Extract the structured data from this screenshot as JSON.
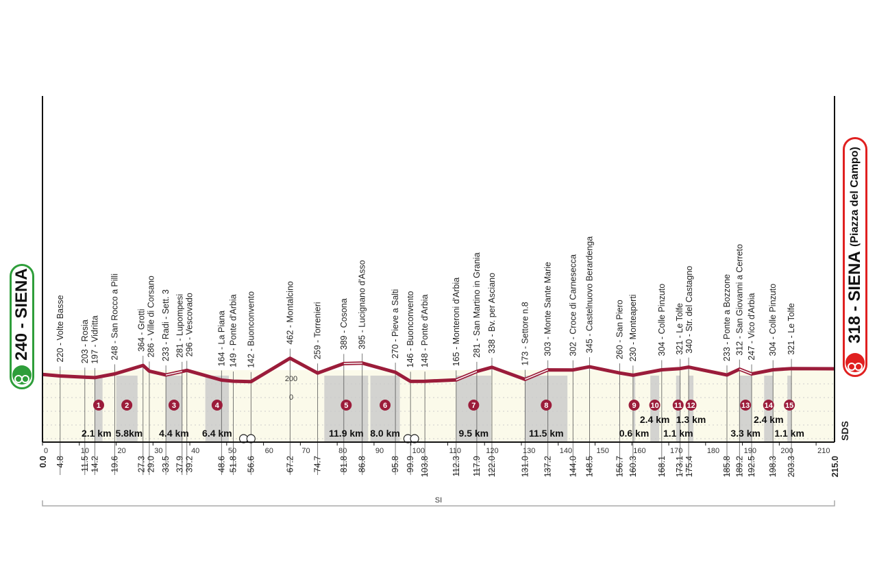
{
  "start": {
    "label": "240 - SIENA",
    "color": "#2e9e3a",
    "icon": "bike-icon"
  },
  "finish": {
    "label": "318 - SIENA",
    "sublabel": "(Piazza del Campo)",
    "color": "#e02020",
    "icon": "bike-icon"
  },
  "sds_label": "SDS",
  "bracket_label": "SI",
  "chart_data": {
    "type": "line",
    "profile_color": "#9b1c3a",
    "total_km": 215,
    "start_km_label": "0.0",
    "finish_km_label": "215.0",
    "x_ticks": [
      0,
      10,
      20,
      30,
      40,
      50,
      60,
      70,
      80,
      90,
      100,
      110,
      120,
      130,
      140,
      150,
      160,
      170,
      180,
      190,
      200,
      210
    ],
    "elev_labels": [
      "200",
      "0"
    ],
    "start_elevation": 240,
    "finish_elevation": 318,
    "waypoints": [
      {
        "km": 4.8,
        "km_label": "4.8",
        "elev": 220,
        "label": "220 - Volte Basse"
      },
      {
        "km": 11.5,
        "km_label": "11.5",
        "elev": 203,
        "label": "203 - Rosia"
      },
      {
        "km": 14.2,
        "km_label": "14.2",
        "elev": 197,
        "label": "197 - Vidritta"
      },
      {
        "km": 19.6,
        "km_label": "19.6",
        "elev": 248,
        "label": "248 - San Rocco a Pilli"
      },
      {
        "km": 27.3,
        "km_label": "27.3",
        "elev": 364,
        "label": "364 - Grotti"
      },
      {
        "km": 29.0,
        "km_label": "29.0",
        "elev": 286,
        "label": "286 - Ville di Corsano"
      },
      {
        "km": 33.5,
        "km_label": "33.5",
        "elev": 233,
        "label": "233 - Radi - Sett. 3"
      },
      {
        "km": 37.9,
        "km_label": "37.9",
        "elev": 281,
        "label": "281 - Lupompesi"
      },
      {
        "km": 39.2,
        "km_label": "39.2",
        "elev": 296,
        "label": "296 - Vescovado"
      },
      {
        "km": 48.6,
        "km_label": "48.6",
        "elev": 164,
        "label": "164 - La Piana"
      },
      {
        "km": 51.8,
        "km_label": "51.8",
        "elev": 149,
        "label": "149 - Ponte d'Arbia"
      },
      {
        "km": 56.6,
        "km_label": "56.6",
        "elev": 142,
        "label": "142 - Buonconvento"
      },
      {
        "km": 67.2,
        "km_label": "67.2",
        "elev": 462,
        "label": "462 - Montalcino"
      },
      {
        "km": 74.7,
        "km_label": "74.7",
        "elev": 259,
        "label": "259 - Torrenieri"
      },
      {
        "km": 81.8,
        "km_label": "81.8",
        "elev": 389,
        "label": "389 - Cosona"
      },
      {
        "km": 86.8,
        "km_label": "86.8",
        "elev": 395,
        "label": "395 - Lucignano d'Asso"
      },
      {
        "km": 95.8,
        "km_label": "95.8",
        "elev": 270,
        "label": "270 - Pieve a Salti"
      },
      {
        "km": 99.9,
        "km_label": "99.9",
        "elev": 146,
        "label": "146 - Buonconvento"
      },
      {
        "km": 103.8,
        "km_label": "103.8",
        "elev": 148,
        "label": "148 - Ponte d'Arbia"
      },
      {
        "km": 112.3,
        "km_label": "112.3",
        "elev": 165,
        "label": "165 - Monteroni d'Arbia"
      },
      {
        "km": 117.9,
        "km_label": "117.9",
        "elev": 281,
        "label": "281 - San Martino in Grania"
      },
      {
        "km": 122.0,
        "km_label": "122.0",
        "elev": 338,
        "label": "338 - Bv. per Asciano"
      },
      {
        "km": 131.0,
        "km_label": "131.0",
        "elev": 173,
        "label": "173 - Settore n.8"
      },
      {
        "km": 137.2,
        "km_label": "137.2",
        "elev": 303,
        "label": "303 - Monte Sante Marie"
      },
      {
        "km": 144.0,
        "km_label": "144.0",
        "elev": 302,
        "label": "302 - Croce di Carnesecca"
      },
      {
        "km": 148.5,
        "km_label": "148.5",
        "elev": 345,
        "label": "345 - Castelnuovo Berardenga"
      },
      {
        "km": 156.7,
        "km_label": "156.7",
        "elev": 260,
        "label": "260 - San Piero"
      },
      {
        "km": 160.3,
        "km_label": "160.3",
        "elev": 230,
        "label": "230 - Monteaperti"
      },
      {
        "km": 168.1,
        "km_label": "168.1",
        "elev": 304,
        "label": "304 - Colle Pinzuto"
      },
      {
        "km": 173.1,
        "km_label": "173.1",
        "elev": 321,
        "label": "321 - Le Tolfe"
      },
      {
        "km": 175.4,
        "km_label": "175.4",
        "elev": 340,
        "label": "340 - Str. del Castagno"
      },
      {
        "km": 185.8,
        "km_label": "185.8",
        "elev": 233,
        "label": "233 - Ponte a Bozzone"
      },
      {
        "km": 189.2,
        "km_label": "189.2",
        "elev": 312,
        "label": "312 - San Giovanni a Cerreto"
      },
      {
        "km": 192.5,
        "km_label": "192.5",
        "elev": 247,
        "label": "247 - Vico d'Arbia"
      },
      {
        "km": 198.3,
        "km_label": "198.3",
        "elev": 304,
        "label": "304 - Colle Pinzuto"
      },
      {
        "km": 203.3,
        "km_label": "203.3",
        "elev": 321,
        "label": "321 - Le Tolfe"
      }
    ],
    "sectors": [
      {
        "num": "1",
        "length": "2.1 km",
        "from_km": 14.2,
        "to_km": 16.3,
        "row": 1
      },
      {
        "num": "2",
        "length": "5.8km",
        "from_km": 20.0,
        "to_km": 25.8,
        "row": 1
      },
      {
        "num": "3",
        "length": "4.4 km",
        "from_km": 33.5,
        "to_km": 37.9,
        "row": 1
      },
      {
        "num": "4",
        "length": "6.4 km",
        "from_km": 44.2,
        "to_km": 50.6,
        "row": 1
      },
      {
        "num": "5",
        "length": "11.9 km",
        "from_km": 76.5,
        "to_km": 88.4,
        "row": 1
      },
      {
        "num": "6",
        "length": "8.0 km",
        "from_km": 89.0,
        "to_km": 97.0,
        "row": 1
      },
      {
        "num": "7",
        "length": "9.5 km",
        "from_km": 112.3,
        "to_km": 121.8,
        "row": 1
      },
      {
        "num": "8",
        "length": "11.5 km",
        "from_km": 131.0,
        "to_km": 142.5,
        "row": 1
      },
      {
        "num": "9",
        "length": "0.6 km",
        "from_km": 160.3,
        "to_km": 160.9,
        "row": 1
      },
      {
        "num": "10",
        "length": "2.4 km",
        "from_km": 165.0,
        "to_km": 167.4,
        "row": 0
      },
      {
        "num": "11",
        "length": "1.1 km",
        "from_km": 172.0,
        "to_km": 173.1,
        "row": 1
      },
      {
        "num": "12",
        "length": "1.3 km",
        "from_km": 175.4,
        "to_km": 176.7,
        "row": 0
      },
      {
        "num": "13",
        "length": "3.3 km",
        "from_km": 189.2,
        "to_km": 192.5,
        "row": 1
      },
      {
        "num": "14",
        "length": "2.4 km",
        "from_km": 195.9,
        "to_km": 198.3,
        "row": 0
      },
      {
        "num": "15",
        "length": "1.1 km",
        "from_km": 202.2,
        "to_km": 203.3,
        "row": 1
      }
    ],
    "railway_crossings_km": [
      54.6,
      56.6,
      99.2,
      101.0
    ]
  }
}
